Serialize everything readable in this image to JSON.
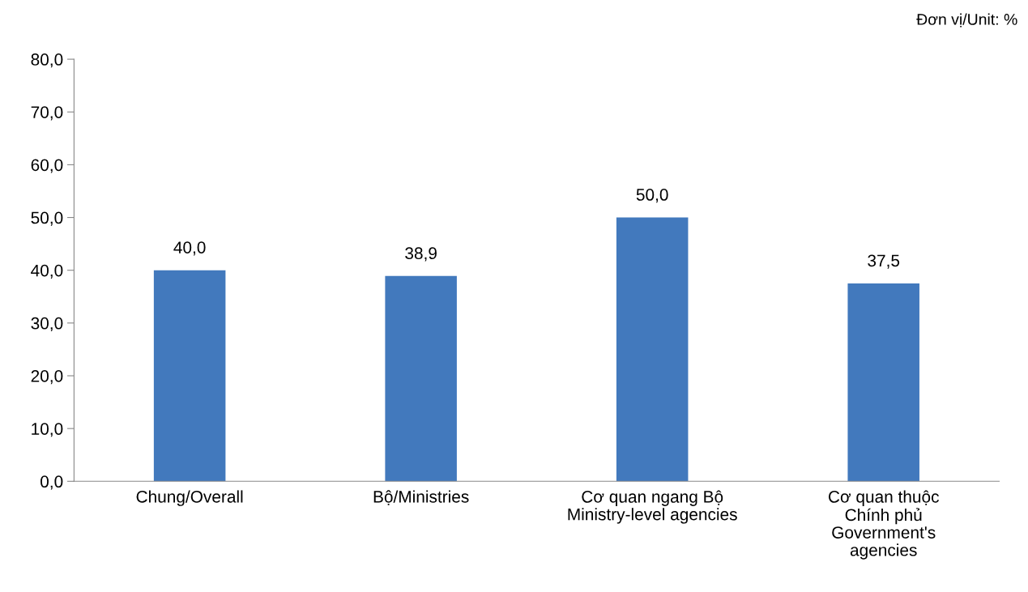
{
  "chart_data": {
    "type": "bar",
    "categories": [
      "Chung/Overall",
      "Bộ/Ministries",
      "Cơ quan ngang Bộ\nMinistry-level agencies",
      "Cơ quan thuộc\nChính phủ\nGovernment's\nagencies"
    ],
    "values": [
      40.0,
      38.9,
      50.0,
      37.5
    ],
    "value_labels": [
      "40,0",
      "38,9",
      "50,0",
      "37,5"
    ],
    "color": "#4279bd",
    "ylim": [
      0,
      80
    ],
    "yticks": [
      {
        "value": 0,
        "label": "0,0"
      },
      {
        "value": 10,
        "label": "10,0"
      },
      {
        "value": 20,
        "label": "20,0"
      },
      {
        "value": 30,
        "label": "30,0"
      },
      {
        "value": 40,
        "label": "40,0"
      },
      {
        "value": 50,
        "label": "50,0"
      },
      {
        "value": 60,
        "label": "60,0"
      },
      {
        "value": 70,
        "label": "70,0"
      },
      {
        "value": 80,
        "label": "80,0"
      }
    ],
    "grid": false,
    "annotations": [
      "Đơn vị/Unit: %"
    ]
  }
}
